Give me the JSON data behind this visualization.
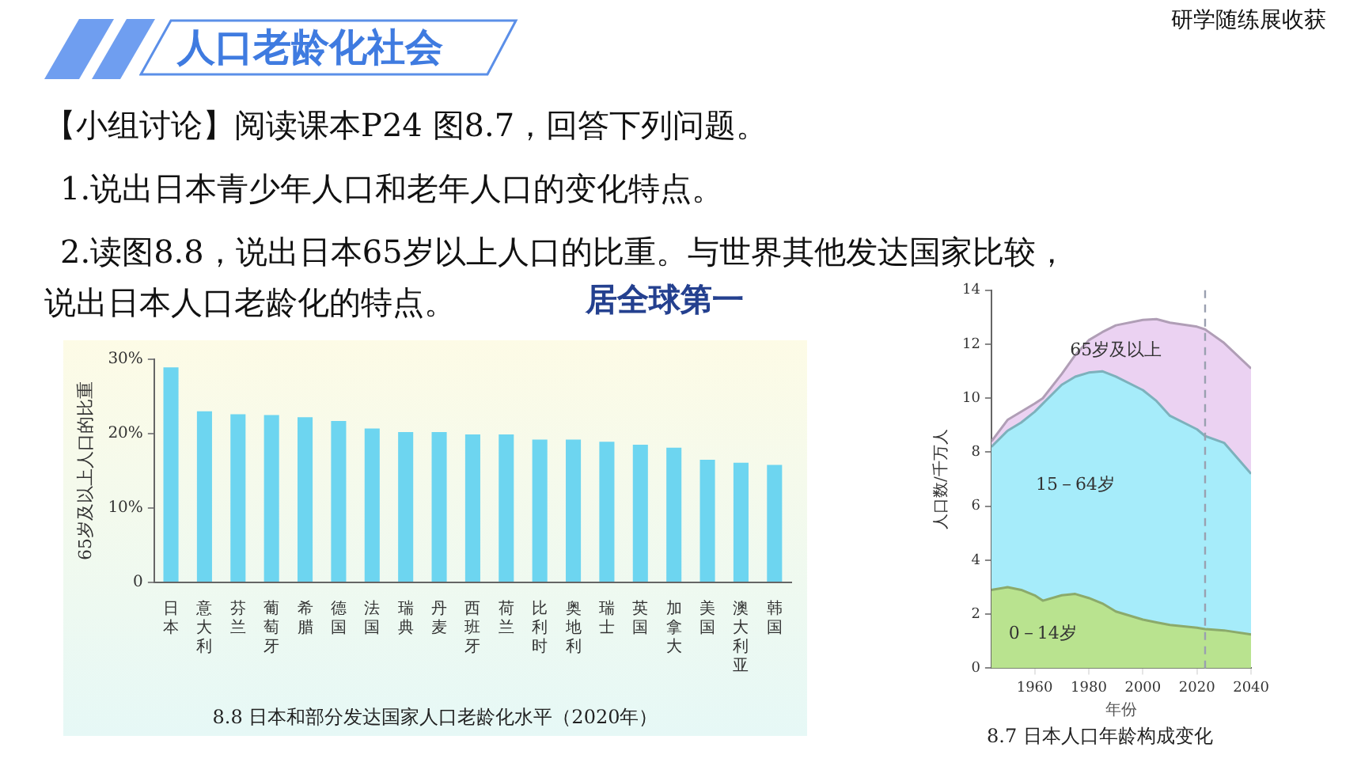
{
  "chart_data": [
    {
      "type": "other",
      "title": "人口老龄化社会",
      "annotations": [
        "研学随练展收获",
        "【小组讨论】阅读课本P24 图8.7，回答下列问题。",
        "1.说出日本青少年人口和老年人口的变化特点。",
        "2.读图8.8，说出日本65岁以上人口的比重。与世界其他发达国家比较，",
        "说出日本人口老龄化的特点。",
        "居全球第一"
      ]
    },
    {
      "type": "bar",
      "title": "8.8 日本和部分发达国家人口老龄化水平（2020年）",
      "ylabel": "65岁及以上人口的比重",
      "categories": [
        "日本",
        "意大利",
        "芬兰",
        "葡萄牙",
        "希腊",
        "德国",
        "法国",
        "瑞典",
        "丹麦",
        "西班牙",
        "荷兰",
        "比利时",
        "奥地利",
        "瑞士",
        "英国",
        "加拿大",
        "美国",
        "澳大利亚",
        "韩国"
      ],
      "values": [
        28.9,
        23.0,
        22.6,
        22.5,
        22.2,
        21.7,
        20.7,
        20.2,
        20.2,
        19.9,
        19.9,
        19.2,
        19.2,
        18.9,
        18.5,
        18.1,
        16.5,
        16.1,
        15.8
      ],
      "color": "#6dd5f0",
      "ylim": [
        0,
        30
      ],
      "yticks": [
        0,
        {
          "value": 10,
          "label": "10%"
        },
        {
          "value": 20,
          "label": "20%"
        },
        {
          "value": 30,
          "label": "30%"
        }
      ],
      "grid": false,
      "legend": false
    },
    {
      "type": "area",
      "stacked": true,
      "title": "8.7 日本人口年龄构成变化",
      "xlabel": "年份",
      "ylabel": "人口数/千万人",
      "x": [
        1944,
        1950,
        1955,
        1960,
        1963,
        1970,
        1975,
        1980,
        1985,
        1990,
        2000,
        2005,
        2010,
        2020,
        2023,
        2030,
        2040
      ],
      "series": [
        {
          "name": "0－14岁",
          "color": "#b9e38f",
          "values": [
            2.9,
            3.0,
            2.9,
            2.7,
            2.5,
            2.7,
            2.75,
            2.6,
            2.4,
            2.1,
            1.8,
            1.7,
            1.6,
            1.5,
            1.45,
            1.4,
            1.25
          ]
        },
        {
          "name": "15－64岁",
          "color": "#a6ecfa",
          "values": [
            5.3,
            5.8,
            6.2,
            6.8,
            7.3,
            7.8,
            8.05,
            8.35,
            8.6,
            8.7,
            8.5,
            8.2,
            7.75,
            7.35,
            7.15,
            6.95,
            5.95
          ]
        },
        {
          "name": "65岁及以上",
          "color": "#ebd2f2",
          "values": [
            0.2,
            0.4,
            0.4,
            0.3,
            0.2,
            0.4,
            0.8,
            1.2,
            1.45,
            1.9,
            2.6,
            3.03,
            3.45,
            3.8,
            3.95,
            3.7,
            3.9
          ]
        }
      ],
      "xlim": [
        1944,
        2040
      ],
      "xticks": [
        1960,
        1980,
        2000,
        2020,
        2040
      ],
      "ylim": [
        0,
        14
      ],
      "yticks": [
        0,
        2,
        4,
        6,
        8,
        10,
        12,
        14
      ],
      "ref_lines": [
        {
          "axis": "x",
          "value": 2023,
          "color": "#9aa0b0",
          "line_style": "dashed"
        }
      ],
      "grid": false,
      "legend": false
    }
  ]
}
